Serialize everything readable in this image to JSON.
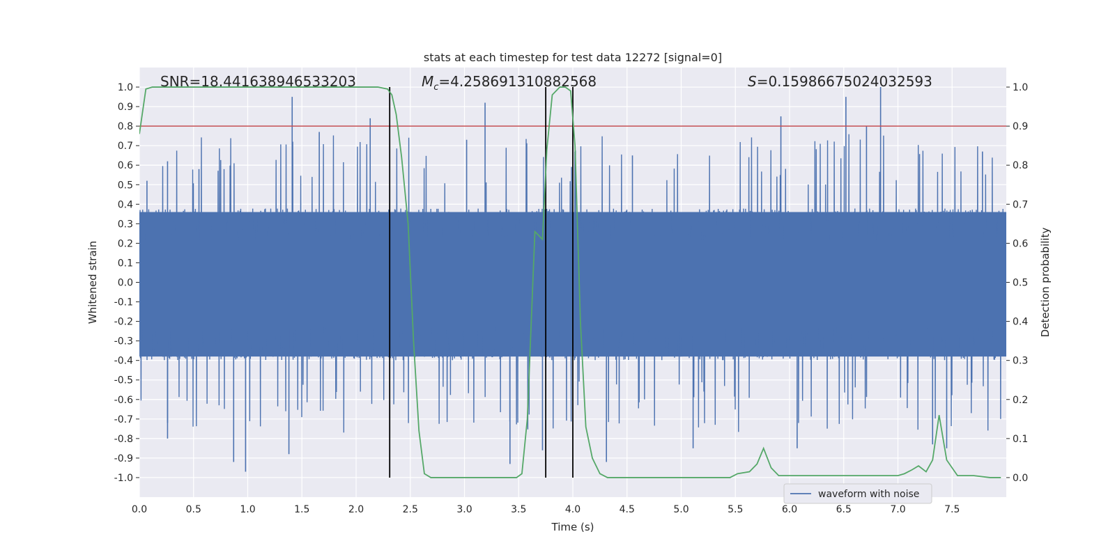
{
  "chart_data": {
    "type": "line",
    "title": "stats at each timestep for test data 12272 [signal=0]",
    "xlabel": "Time (s)",
    "ylabel": "Whitened strain",
    "y2label": "Detection probability",
    "xlim": [
      0,
      8.0
    ],
    "ylim": [
      -1.1,
      1.1
    ],
    "y2lim": [
      -0.05,
      1.05
    ],
    "x_ticks": [
      0.0,
      0.5,
      1.0,
      1.5,
      2.0,
      2.5,
      3.0,
      3.5,
      4.0,
      4.5,
      5.0,
      5.5,
      6.0,
      6.5,
      7.0,
      7.5
    ],
    "x_tick_labels": [
      "0.0",
      "0.5",
      "1.0",
      "1.5",
      "2.0",
      "2.5",
      "3.0",
      "3.5",
      "4.0",
      "4.5",
      "5.0",
      "5.5",
      "6.0",
      "6.5",
      "7.0",
      "7.5"
    ],
    "y_ticks": [
      1.0,
      0.9,
      0.8,
      0.7,
      0.6,
      0.5,
      0.4,
      0.3,
      0.2,
      0.1,
      0.0,
      -0.1,
      -0.2,
      -0.3,
      -0.4,
      -0.5,
      -0.6,
      -0.7,
      -0.8,
      -0.9,
      -1.0
    ],
    "y_tick_labels": [
      "1.0",
      "0.9",
      "0.8",
      "0.7",
      "0.6",
      "0.5",
      "0.4",
      "0.3",
      "0.2",
      "0.1",
      "0.0",
      "-0.1",
      "-0.2",
      "-0.3",
      "-0.4",
      "-0.5",
      "-0.6",
      "-0.7",
      "-0.8",
      "-0.9",
      "-1.0"
    ],
    "y2_ticks": [
      1.0,
      0.9,
      0.8,
      0.7,
      0.6,
      0.5,
      0.4,
      0.3,
      0.2,
      0.1,
      0.0
    ],
    "y2_tick_labels": [
      "1.0",
      "0.9",
      "0.8",
      "0.7",
      "0.6",
      "0.5",
      "0.4",
      "0.3",
      "0.2",
      "0.1",
      "0.0"
    ],
    "annotations": {
      "snr": "SNR=18.441638946533203",
      "mc_symbol": "M",
      "mc_sub": "c",
      "mc_value": "=4.258691310882568",
      "s_symbol": "S",
      "s_value": "=0.15986675024032593"
    },
    "threshold": {
      "y": 0.8,
      "color": "#c44e52"
    },
    "vlines": [
      2.31,
      3.75,
      4.0
    ],
    "waveform": {
      "name": "waveform with noise",
      "color": "#4c72b0",
      "dense_amplitude_max": 0.36,
      "dense_amplitude_min": -0.38,
      "spike_peaks": [
        {
          "t": 0.07,
          "v": 0.52
        },
        {
          "t": 0.26,
          "v": 0.62
        },
        {
          "t": 0.55,
          "v": 0.58
        },
        {
          "t": 1.41,
          "v": 0.95
        },
        {
          "t": 1.66,
          "v": 0.77
        },
        {
          "t": 2.13,
          "v": 0.84
        },
        {
          "t": 3.19,
          "v": 0.92
        },
        {
          "t": 3.02,
          "v": 0.73
        },
        {
          "t": 4.55,
          "v": 0.65
        },
        {
          "t": 5.92,
          "v": 0.85
        },
        {
          "t": 6.52,
          "v": 0.95
        },
        {
          "t": 6.84,
          "v": 1.0
        },
        {
          "t": 6.71,
          "v": 0.8
        },
        {
          "t": 7.78,
          "v": 0.67
        }
      ],
      "spike_troughs": [
        {
          "t": 0.26,
          "v": -0.72
        },
        {
          "t": 0.26,
          "v": -0.8
        },
        {
          "t": 0.87,
          "v": -0.92
        },
        {
          "t": 0.98,
          "v": -0.97
        },
        {
          "t": 1.38,
          "v": -0.88
        },
        {
          "t": 3.42,
          "v": -0.93
        },
        {
          "t": 3.72,
          "v": -0.86
        },
        {
          "t": 4.31,
          "v": -0.92
        },
        {
          "t": 5.11,
          "v": -0.85
        },
        {
          "t": 6.07,
          "v": -0.85
        },
        {
          "t": 7.32,
          "v": -0.83
        },
        {
          "t": 7.45,
          "v": -0.85
        }
      ]
    },
    "probability": {
      "name": "Detection probability",
      "color": "#55a868",
      "x": [
        0.0,
        0.06,
        0.12,
        0.5,
        1.0,
        1.5,
        2.0,
        2.2,
        2.29,
        2.33,
        2.37,
        2.42,
        2.48,
        2.53,
        2.58,
        2.63,
        2.69,
        2.8,
        3.0,
        3.2,
        3.43,
        3.48,
        3.53,
        3.58,
        3.65,
        3.72,
        3.76,
        3.81,
        3.88,
        3.93,
        3.98,
        4.02,
        4.07,
        4.12,
        4.18,
        4.25,
        4.32,
        4.4,
        4.5,
        4.7,
        4.85,
        5.0,
        5.2,
        5.45,
        5.52,
        5.63,
        5.7,
        5.76,
        5.83,
        5.9,
        6.0,
        6.2,
        6.5,
        6.8,
        7.0,
        7.06,
        7.13,
        7.19,
        7.26,
        7.32,
        7.38,
        7.45,
        7.55,
        7.7,
        7.85,
        7.95
      ],
      "y": [
        0.88,
        0.995,
        1.0,
        1.0,
        1.0,
        1.0,
        1.0,
        1.0,
        0.995,
        0.98,
        0.93,
        0.82,
        0.65,
        0.35,
        0.12,
        0.01,
        0.0,
        0.0,
        0.0,
        0.0,
        0.0,
        0.0,
        0.01,
        0.15,
        0.63,
        0.61,
        0.84,
        0.98,
        1.0,
        1.0,
        0.99,
        0.85,
        0.4,
        0.13,
        0.05,
        0.01,
        0.0,
        0.0,
        0.0,
        0.0,
        0.0,
        0.0,
        0.0,
        0.0,
        0.01,
        0.015,
        0.035,
        0.075,
        0.025,
        0.005,
        0.005,
        0.005,
        0.005,
        0.005,
        0.005,
        0.01,
        0.02,
        0.03,
        0.015,
        0.045,
        0.16,
        0.045,
        0.005,
        0.005,
        0.0,
        0.0
      ]
    },
    "legend": {
      "label": "waveform with noise",
      "location": "lower-right"
    }
  }
}
